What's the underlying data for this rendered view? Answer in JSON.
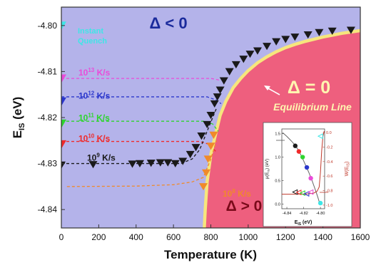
{
  "chart_data": {
    "type": "scatter",
    "xlabel": "Temperature (K)",
    "ylabel_main": "E",
    "ylabel_sub": "IS",
    "ylabel_unit": " (eV)",
    "xlim": [
      0,
      1600
    ],
    "ylim": [
      -4.844,
      -4.796
    ],
    "xticks": [
      0,
      200,
      400,
      600,
      800,
      1000,
      1200,
      1400,
      1600
    ],
    "yticks": [
      -4.8,
      -4.81,
      -4.82,
      -4.83,
      -4.84
    ],
    "ytick_labels": [
      "-4.80",
      "-4.81",
      "-4.82",
      "-4.83",
      "-4.84"
    ],
    "region_labels": {
      "negative": "Δ < 0",
      "zero": "Δ = 0",
      "positive": "Δ > 0",
      "equilibrium": "Equilibrium Line",
      "instant_line1": "Instant",
      "instant_line2": "Quench"
    },
    "colors": {
      "background": "#b4b3ea",
      "equilibrium_fill": "#ee5f7e",
      "equilibrium_line": "#f6e67d",
      "instant": "#3fe6e6",
      "rate_1e13": "#ea4bd9",
      "rate_1e12": "#2b37cc",
      "rate_1e11": "#2ed52e",
      "rate_1e10": "#f02a2a",
      "rate_1e9": "#1a1a1a",
      "rate_1e8": "#f08a2a"
    },
    "equilibrium": {
      "x": [
        765,
        770,
        780,
        800,
        820,
        850,
        880,
        920,
        960,
        1000,
        1050,
        1100,
        1150,
        1200,
        1250,
        1300,
        1350,
        1400,
        1450,
        1500,
        1550,
        1600
      ],
      "y": [
        -4.844,
        -4.84,
        -4.834,
        -4.828,
        -4.8245,
        -4.8195,
        -4.8165,
        -4.8135,
        -4.8115,
        -4.8098,
        -4.8081,
        -4.8068,
        -4.8057,
        -4.8048,
        -4.8041,
        -4.8035,
        -4.803,
        -4.8025,
        -4.8021,
        -4.8017,
        -4.8014,
        -4.8011
      ]
    },
    "series": [
      {
        "name": "Instant Quench",
        "label": "",
        "rate": "",
        "colorKey": "instant",
        "marker": "triangle-down",
        "points": [
          [
            0,
            -4.8
          ]
        ],
        "fit_x": [],
        "fit_y": []
      },
      {
        "name": "",
        "label": "10",
        "rate": "13",
        "colorKey": "rate_1e13",
        "marker": "triangle-down",
        "points": [
          [
            0,
            -4.8115
          ]
        ],
        "fit_x": [
          0,
          800,
          840,
          850
        ],
        "fit_y": [
          -4.8115,
          -4.8115,
          -4.8118,
          -4.8122
        ]
      },
      {
        "name": "",
        "label": "10",
        "rate": "12",
        "colorKey": "rate_1e12",
        "marker": "triangle-down",
        "points": [
          [
            0,
            -4.8165
          ]
        ],
        "fit_x": [
          0,
          780,
          830,
          855
        ],
        "fit_y": [
          -4.8155,
          -4.8155,
          -4.8162,
          -4.817
        ]
      },
      {
        "name": "",
        "label": "10",
        "rate": "11",
        "colorKey": "rate_1e11",
        "marker": "triangle-down",
        "points": [
          [
            0,
            -4.8213
          ]
        ],
        "fit_x": [
          0,
          760,
          810,
          840
        ],
        "fit_y": [
          -4.8208,
          -4.8208,
          -4.8214,
          -4.823
        ]
      },
      {
        "name": "",
        "label": "10",
        "rate": "10",
        "colorKey": "rate_1e10",
        "marker": "triangle-down",
        "points": [
          [
            0,
            -4.8258
          ]
        ],
        "fit_x": [
          0,
          740,
          790,
          830
        ],
        "fit_y": [
          -4.8252,
          -4.8252,
          -4.8258,
          -4.8275
        ]
      },
      {
        "name": "",
        "label": "10",
        "rate": "9",
        "colorKey": "rate_1e9",
        "marker": "triangle-down",
        "points": [
          [
            0,
            -4.8303
          ],
          [
            170,
            -4.8302
          ],
          [
            380,
            -4.8301
          ],
          [
            420,
            -4.83
          ],
          [
            480,
            -4.8299
          ],
          [
            530,
            -4.8298
          ],
          [
            570,
            -4.8298
          ],
          [
            610,
            -4.83
          ],
          [
            650,
            -4.8295
          ],
          [
            690,
            -4.828
          ],
          [
            720,
            -4.8265
          ],
          [
            750,
            -4.824
          ],
          [
            780,
            -4.8215
          ],
          [
            800,
            -4.8195
          ],
          [
            820,
            -4.817
          ],
          [
            835,
            -4.8155
          ],
          [
            850,
            -4.814
          ],
          [
            870,
            -4.812
          ],
          [
            900,
            -4.81
          ],
          [
            935,
            -4.8085
          ],
          [
            975,
            -4.8073
          ],
          [
            1010,
            -4.8062
          ],
          [
            1050,
            -4.8055
          ],
          [
            1100,
            -4.8045
          ],
          [
            1150,
            -4.8035
          ],
          [
            1200,
            -4.803
          ],
          [
            1250,
            -4.8025
          ],
          [
            1320,
            -4.802
          ],
          [
            1380,
            -4.8015
          ],
          [
            1450,
            -4.8012
          ],
          [
            1550,
            -4.801
          ]
        ],
        "fit_x": [
          0,
          640,
          700,
          740,
          790,
          830
        ],
        "fit_y": [
          -4.83,
          -4.83,
          -4.829,
          -4.827,
          -4.822,
          -4.818
        ]
      },
      {
        "name": "",
        "label": "10",
        "rate": "8",
        "colorKey": "rate_1e8",
        "marker": "triangle-down",
        "points": [
          [
            760,
            -4.835
          ],
          [
            775,
            -4.832
          ],
          [
            785,
            -4.829
          ],
          [
            800,
            -4.8262
          ],
          [
            815,
            -4.8238
          ]
        ],
        "fit_x": [
          30,
          400,
          600,
          700,
          760,
          800,
          830
        ],
        "fit_y": [
          -4.835,
          -4.8349,
          -4.8346,
          -4.834,
          -4.833,
          -4.829,
          -4.825
        ]
      }
    ],
    "rate_unit": " K/s",
    "inset": {
      "xlabel_main": "E",
      "xlabel_sub": "IS",
      "xlabel_unit": " (eV)",
      "ylabel_left": "μ(Eₐ) (eV)",
      "ylabel_right": "W(Eₐ)",
      "ylabel_left_main": "μ(E",
      "ylabel_left_sub": "IS",
      "ylabel_left_end": ") (eV)",
      "ylabel_right_main": "W(E",
      "ylabel_right_sub": "IS",
      "ylabel_right_end": ")",
      "xlim": [
        -4.846,
        -4.795
      ],
      "ylim_left": [
        -0.1,
        1.6
      ],
      "ylim_right": [
        -1.05,
        0.05
      ],
      "xticks": [
        -4.84,
        -4.82,
        -4.8
      ],
      "xtick_labels": [
        "-4.84",
        "-4.82",
        "-4.80"
      ],
      "yticks_left": [
        0.0,
        0.5,
        1.0,
        1.5
      ],
      "ytick_labels_left": [
        "0.0",
        "0.5",
        "1.0",
        "1.5"
      ],
      "yticks_right": [
        0.0,
        -0.2,
        -0.4,
        -0.6,
        -0.8,
        -1.0
      ],
      "ytick_labels_right": [
        "0.0",
        "-0.2",
        "-0.4",
        "-0.6",
        "-0.8",
        "-1.0"
      ],
      "mu_curve": {
        "x": [
          -4.845,
          -4.84,
          -4.835,
          -4.83,
          -4.826,
          -4.822,
          -4.818,
          -4.814,
          -4.81,
          -4.806,
          -4.803,
          -4.801
        ],
        "y": [
          1.52,
          1.44,
          1.35,
          1.25,
          1.14,
          1.0,
          0.84,
          0.68,
          0.5,
          0.3,
          0.14,
          0.02
        ]
      },
      "w_curve": {
        "x": [
          -4.846,
          -4.83,
          -4.815,
          -4.808,
          -4.804,
          -4.8015,
          -4.8,
          -4.7985,
          -4.797,
          -4.7955
        ],
        "y": [
          -0.85,
          -0.85,
          -0.845,
          -0.835,
          -0.81,
          -0.75,
          -0.55,
          -0.25,
          -0.05,
          0.02
        ]
      },
      "filled_points": [
        {
          "x": -4.83,
          "y": 1.24,
          "colorKey": "rate_1e9"
        },
        {
          "x": -4.8257,
          "y": 1.12,
          "colorKey": "rate_1e10"
        },
        {
          "x": -4.8212,
          "y": 1.0,
          "colorKey": "rate_1e11"
        },
        {
          "x": -4.8162,
          "y": 0.78,
          "colorKey": "rate_1e12"
        },
        {
          "x": -4.8115,
          "y": 0.55,
          "colorKey": "rate_1e13"
        },
        {
          "x": -4.8,
          "y": 0.02,
          "colorKey": "instant"
        }
      ],
      "open_points": [
        {
          "x": -4.8303,
          "w": -0.82,
          "colorKey": "rate_1e9"
        },
        {
          "x": -4.8258,
          "w": -0.825,
          "colorKey": "rate_1e10"
        },
        {
          "x": -4.8213,
          "w": -0.835,
          "colorKey": "rate_1e11"
        },
        {
          "x": -4.8165,
          "w": -0.845,
          "colorKey": "rate_1e12"
        },
        {
          "x": -4.8115,
          "w": -0.82,
          "colorKey": "rate_1e13"
        },
        {
          "x": -4.8,
          "w": -0.05,
          "colorKey": "instant"
        }
      ]
    }
  }
}
